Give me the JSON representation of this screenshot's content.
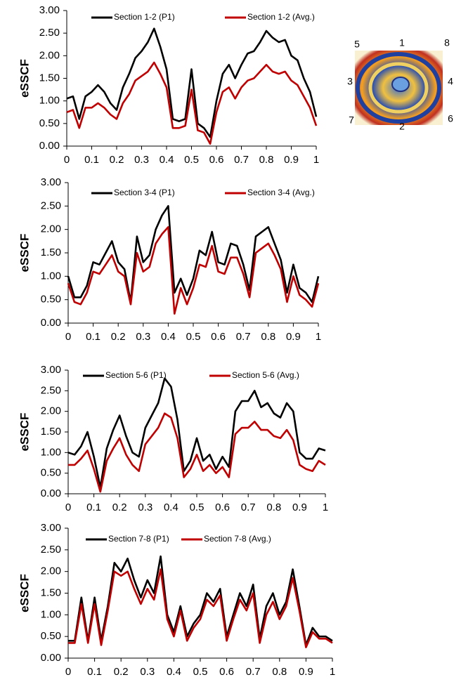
{
  "chart_data": [
    {
      "type": "line",
      "ylabel": "eSSCF",
      "xlim": [
        0,
        1
      ],
      "ylim": [
        0,
        3
      ],
      "xticks": [
        0,
        0.1,
        0.2,
        0.3,
        0.4,
        0.5,
        0.6,
        0.7,
        0.8,
        0.9,
        1
      ],
      "yticks": [
        {
          "value": 0,
          "label": "0.00"
        },
        {
          "value": 0.5,
          "label": "0.50"
        },
        {
          "value": 1,
          "label": "1.00"
        },
        {
          "value": 1.5,
          "label": "1.50"
        },
        {
          "value": 2,
          "label": "2.00"
        },
        {
          "value": 2.5,
          "label": "2.50"
        },
        {
          "value": 3,
          "label": "3.00"
        }
      ],
      "x": [
        0,
        0.025,
        0.05,
        0.075,
        0.1,
        0.125,
        0.15,
        0.175,
        0.2,
        0.225,
        0.25,
        0.275,
        0.3,
        0.325,
        0.35,
        0.375,
        0.4,
        0.425,
        0.45,
        0.475,
        0.5,
        0.525,
        0.55,
        0.575,
        0.6,
        0.625,
        0.65,
        0.675,
        0.7,
        0.725,
        0.75,
        0.775,
        0.8,
        0.825,
        0.85,
        0.875,
        0.9,
        0.925,
        0.95,
        0.975,
        1
      ],
      "series": [
        {
          "name": "Section 1-2 (P1)",
          "color": "#000000",
          "values": [
            1.05,
            1.1,
            0.6,
            1.1,
            1.2,
            1.35,
            1.2,
            0.95,
            0.8,
            1.3,
            1.6,
            1.95,
            2.1,
            2.3,
            2.6,
            2.2,
            1.7,
            0.6,
            0.55,
            0.6,
            1.7,
            0.5,
            0.4,
            0.2,
            1.0,
            1.6,
            1.8,
            1.5,
            1.8,
            2.05,
            2.1,
            2.3,
            2.55,
            2.4,
            2.3,
            2.35,
            2.0,
            1.9,
            1.5,
            1.2,
            0.65
          ]
        },
        {
          "name": "Section 1-2 (Avg.)",
          "color": "#c00000",
          "values": [
            0.75,
            0.8,
            0.4,
            0.85,
            0.85,
            0.95,
            0.85,
            0.7,
            0.6,
            0.95,
            1.15,
            1.45,
            1.55,
            1.65,
            1.85,
            1.6,
            1.3,
            0.4,
            0.4,
            0.45,
            1.25,
            0.35,
            0.3,
            0.05,
            0.75,
            1.2,
            1.3,
            1.05,
            1.3,
            1.45,
            1.5,
            1.65,
            1.8,
            1.65,
            1.6,
            1.65,
            1.45,
            1.35,
            1.1,
            0.85,
            0.45
          ]
        }
      ]
    },
    {
      "type": "line",
      "ylabel": "eSSCF",
      "xlim": [
        0,
        1
      ],
      "ylim": [
        0,
        3
      ],
      "xticks": [
        0,
        0.1,
        0.2,
        0.3,
        0.4,
        0.5,
        0.6,
        0.7,
        0.8,
        0.9,
        1
      ],
      "yticks": [
        {
          "value": 0,
          "label": "0.00"
        },
        {
          "value": 0.5,
          "label": "0.50"
        },
        {
          "value": 1,
          "label": "1.00"
        },
        {
          "value": 1.5,
          "label": "1.50"
        },
        {
          "value": 2,
          "label": "2.00"
        },
        {
          "value": 2.5,
          "label": "2.50"
        },
        {
          "value": 3,
          "label": "3.00"
        }
      ],
      "x": [
        0,
        0.025,
        0.05,
        0.075,
        0.1,
        0.125,
        0.15,
        0.175,
        0.2,
        0.225,
        0.25,
        0.275,
        0.3,
        0.325,
        0.35,
        0.375,
        0.4,
        0.425,
        0.45,
        0.475,
        0.5,
        0.525,
        0.55,
        0.575,
        0.6,
        0.625,
        0.65,
        0.675,
        0.7,
        0.725,
        0.75,
        0.775,
        0.8,
        0.825,
        0.85,
        0.875,
        0.9,
        0.925,
        0.95,
        0.975,
        1
      ],
      "series": [
        {
          "name": "Section 3-4 (P1)",
          "color": "#000000",
          "values": [
            1.0,
            0.55,
            0.55,
            0.8,
            1.3,
            1.25,
            1.5,
            1.75,
            1.3,
            1.15,
            0.45,
            1.85,
            1.3,
            1.45,
            2.0,
            2.3,
            2.5,
            0.65,
            0.95,
            0.6,
            0.95,
            1.55,
            1.45,
            1.95,
            1.3,
            1.25,
            1.7,
            1.65,
            1.25,
            0.7,
            1.85,
            1.95,
            2.05,
            1.7,
            1.35,
            0.65,
            1.25,
            0.75,
            0.65,
            0.45,
            1.0
          ]
        },
        {
          "name": "Section 3-4 (Avg.)",
          "color": "#c00000",
          "values": [
            0.85,
            0.45,
            0.4,
            0.65,
            1.1,
            1.05,
            1.25,
            1.45,
            1.1,
            1.0,
            0.4,
            1.5,
            1.1,
            1.2,
            1.7,
            1.9,
            2.05,
            0.2,
            0.75,
            0.4,
            0.75,
            1.25,
            1.2,
            1.65,
            1.1,
            1.05,
            1.4,
            1.4,
            1.05,
            0.55,
            1.5,
            1.6,
            1.7,
            1.45,
            1.15,
            0.45,
            1.0,
            0.6,
            0.5,
            0.35,
            0.85
          ]
        }
      ]
    },
    {
      "type": "line",
      "ylabel": "eSSCF",
      "xlim": [
        0,
        1
      ],
      "ylim": [
        0,
        3
      ],
      "xticks": [
        0,
        0.1,
        0.2,
        0.3,
        0.4,
        0.5,
        0.6,
        0.7,
        0.8,
        0.9,
        1
      ],
      "yticks": [
        {
          "value": 0,
          "label": "0.00"
        },
        {
          "value": 0.5,
          "label": "0.50"
        },
        {
          "value": 1,
          "label": "1.00"
        },
        {
          "value": 1.5,
          "label": "1.50"
        },
        {
          "value": 2,
          "label": "2.00"
        },
        {
          "value": 2.5,
          "label": "2.50"
        },
        {
          "value": 3,
          "label": "3.00"
        }
      ],
      "x": [
        0,
        0.025,
        0.05,
        0.075,
        0.1,
        0.125,
        0.15,
        0.175,
        0.2,
        0.225,
        0.25,
        0.275,
        0.3,
        0.325,
        0.35,
        0.375,
        0.4,
        0.425,
        0.45,
        0.475,
        0.5,
        0.525,
        0.55,
        0.575,
        0.6,
        0.625,
        0.65,
        0.675,
        0.7,
        0.725,
        0.75,
        0.775,
        0.8,
        0.825,
        0.85,
        0.875,
        0.9,
        0.925,
        0.95,
        0.975,
        1
      ],
      "series": [
        {
          "name": "Section 5-6 (P1)",
          "color": "#000000",
          "values": [
            1.0,
            0.95,
            1.15,
            1.5,
            0.9,
            0.15,
            1.1,
            1.55,
            1.9,
            1.4,
            1.0,
            0.9,
            1.6,
            1.9,
            2.2,
            2.8,
            2.6,
            1.8,
            0.55,
            0.8,
            1.35,
            0.8,
            0.95,
            0.6,
            0.9,
            0.65,
            2.0,
            2.25,
            2.25,
            2.5,
            2.1,
            2.2,
            1.95,
            1.85,
            2.2,
            2.0,
            1.0,
            0.85,
            0.85,
            1.1,
            1.05
          ]
        },
        {
          "name": "Section 5-6 (Avg.)",
          "color": "#c00000",
          "values": [
            0.7,
            0.7,
            0.85,
            1.05,
            0.6,
            0.05,
            0.8,
            1.1,
            1.35,
            0.95,
            0.7,
            0.55,
            1.2,
            1.4,
            1.6,
            1.95,
            1.85,
            1.35,
            0.4,
            0.6,
            0.95,
            0.55,
            0.7,
            0.5,
            0.65,
            0.4,
            1.45,
            1.6,
            1.6,
            1.75,
            1.55,
            1.55,
            1.4,
            1.35,
            1.55,
            1.3,
            0.7,
            0.6,
            0.55,
            0.8,
            0.7
          ]
        }
      ]
    },
    {
      "type": "line",
      "ylabel": "eSSCF",
      "xlim": [
        0,
        1
      ],
      "ylim": [
        0,
        3
      ],
      "xticks": [
        0,
        0.1,
        0.2,
        0.3,
        0.4,
        0.5,
        0.6,
        0.7,
        0.8,
        0.9,
        1
      ],
      "yticks": [
        {
          "value": 0,
          "label": "0.00"
        },
        {
          "value": 0.5,
          "label": "0.50"
        },
        {
          "value": 1,
          "label": "1.00"
        },
        {
          "value": 1.5,
          "label": "1.50"
        },
        {
          "value": 2,
          "label": "2.00"
        },
        {
          "value": 2.5,
          "label": "2.50"
        },
        {
          "value": 3,
          "label": "3.00"
        }
      ],
      "x": [
        0,
        0.025,
        0.05,
        0.075,
        0.1,
        0.125,
        0.15,
        0.175,
        0.2,
        0.225,
        0.25,
        0.275,
        0.3,
        0.325,
        0.35,
        0.375,
        0.4,
        0.425,
        0.45,
        0.475,
        0.5,
        0.525,
        0.55,
        0.575,
        0.6,
        0.625,
        0.65,
        0.675,
        0.7,
        0.725,
        0.75,
        0.775,
        0.8,
        0.825,
        0.85,
        0.875,
        0.9,
        0.925,
        0.95,
        0.975,
        1
      ],
      "series": [
        {
          "name": "Section 7-8 (P1)",
          "color": "#000000",
          "values": [
            0.4,
            0.4,
            1.4,
            0.4,
            1.4,
            0.4,
            1.2,
            2.2,
            2.0,
            2.3,
            1.8,
            1.4,
            1.8,
            1.5,
            2.35,
            1.0,
            0.6,
            1.2,
            0.5,
            0.8,
            1.0,
            1.5,
            1.3,
            1.6,
            0.5,
            1.0,
            1.5,
            1.2,
            1.7,
            0.45,
            1.2,
            1.5,
            1.0,
            1.3,
            2.05,
            1.2,
            0.3,
            0.7,
            0.5,
            0.5,
            0.4
          ]
        },
        {
          "name": "Section 7-8 (Avg.)",
          "color": "#c00000",
          "values": [
            0.35,
            0.35,
            1.25,
            0.35,
            1.25,
            0.3,
            1.1,
            2.0,
            1.9,
            2.0,
            1.6,
            1.25,
            1.6,
            1.35,
            2.05,
            0.9,
            0.5,
            1.1,
            0.4,
            0.7,
            0.9,
            1.35,
            1.2,
            1.45,
            0.4,
            0.9,
            1.35,
            1.1,
            1.5,
            0.35,
            1.0,
            1.3,
            0.9,
            1.2,
            1.85,
            1.1,
            0.25,
            0.6,
            0.45,
            0.45,
            0.35
          ]
        }
      ]
    }
  ],
  "inset": {
    "labels": [
      "1",
      "2",
      "3",
      "4",
      "5",
      "6",
      "7",
      "8"
    ]
  }
}
